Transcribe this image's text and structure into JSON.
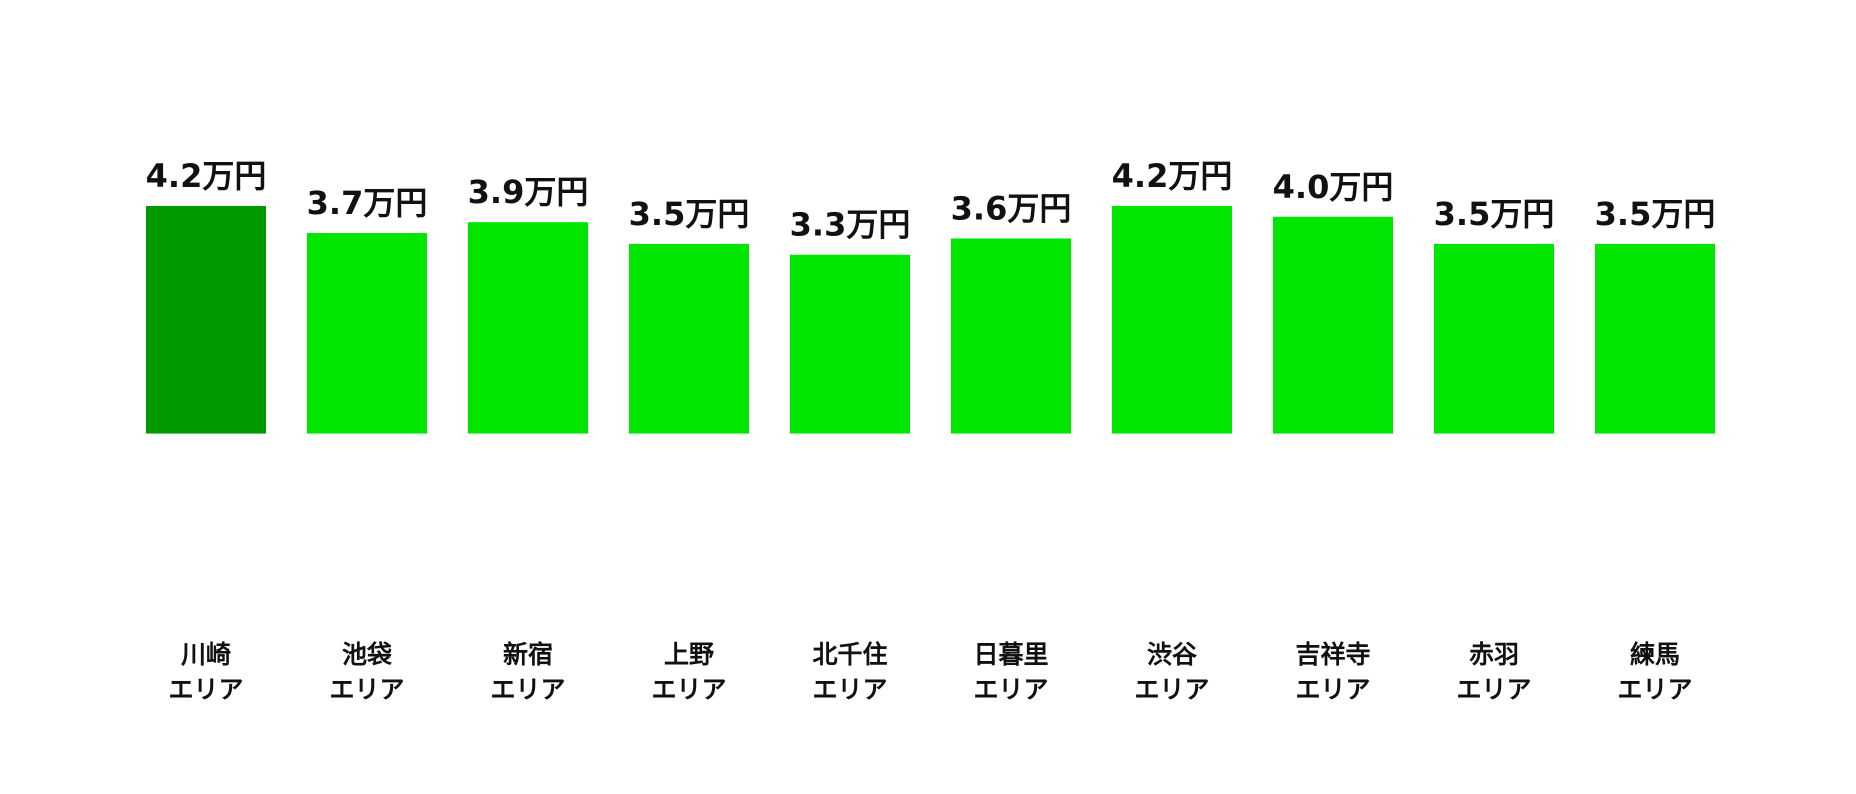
{
  "chart_data": {
    "type": "bar",
    "categories": [
      "川崎\nエリア",
      "池袋\nエリア",
      "新宿\nエリア",
      "上野\nエリア",
      "北千住\nエリア",
      "日暮里\nエリア",
      "渋谷\nエリア",
      "吉祥寺\nエリア",
      "赤羽\nエリア",
      "練馬\nエリア"
    ],
    "values": [
      4.2,
      3.7,
      3.9,
      3.5,
      3.3,
      3.6,
      4.2,
      4.0,
      3.5,
      3.5
    ],
    "value_labels": [
      "4.2万円",
      "3.7万円",
      "3.9万円",
      "3.5万円",
      "3.3万円",
      "3.6万円",
      "4.2万円",
      "4.0万円",
      "3.5万円",
      "3.5万円"
    ],
    "colors": [
      "#009a00",
      "#00e600",
      "#00e600",
      "#00e600",
      "#00e600",
      "#00e600",
      "#00e600",
      "#00e600",
      "#00e600",
      "#00e600"
    ],
    "ylim": [
      -3.2,
      8
    ]
  }
}
